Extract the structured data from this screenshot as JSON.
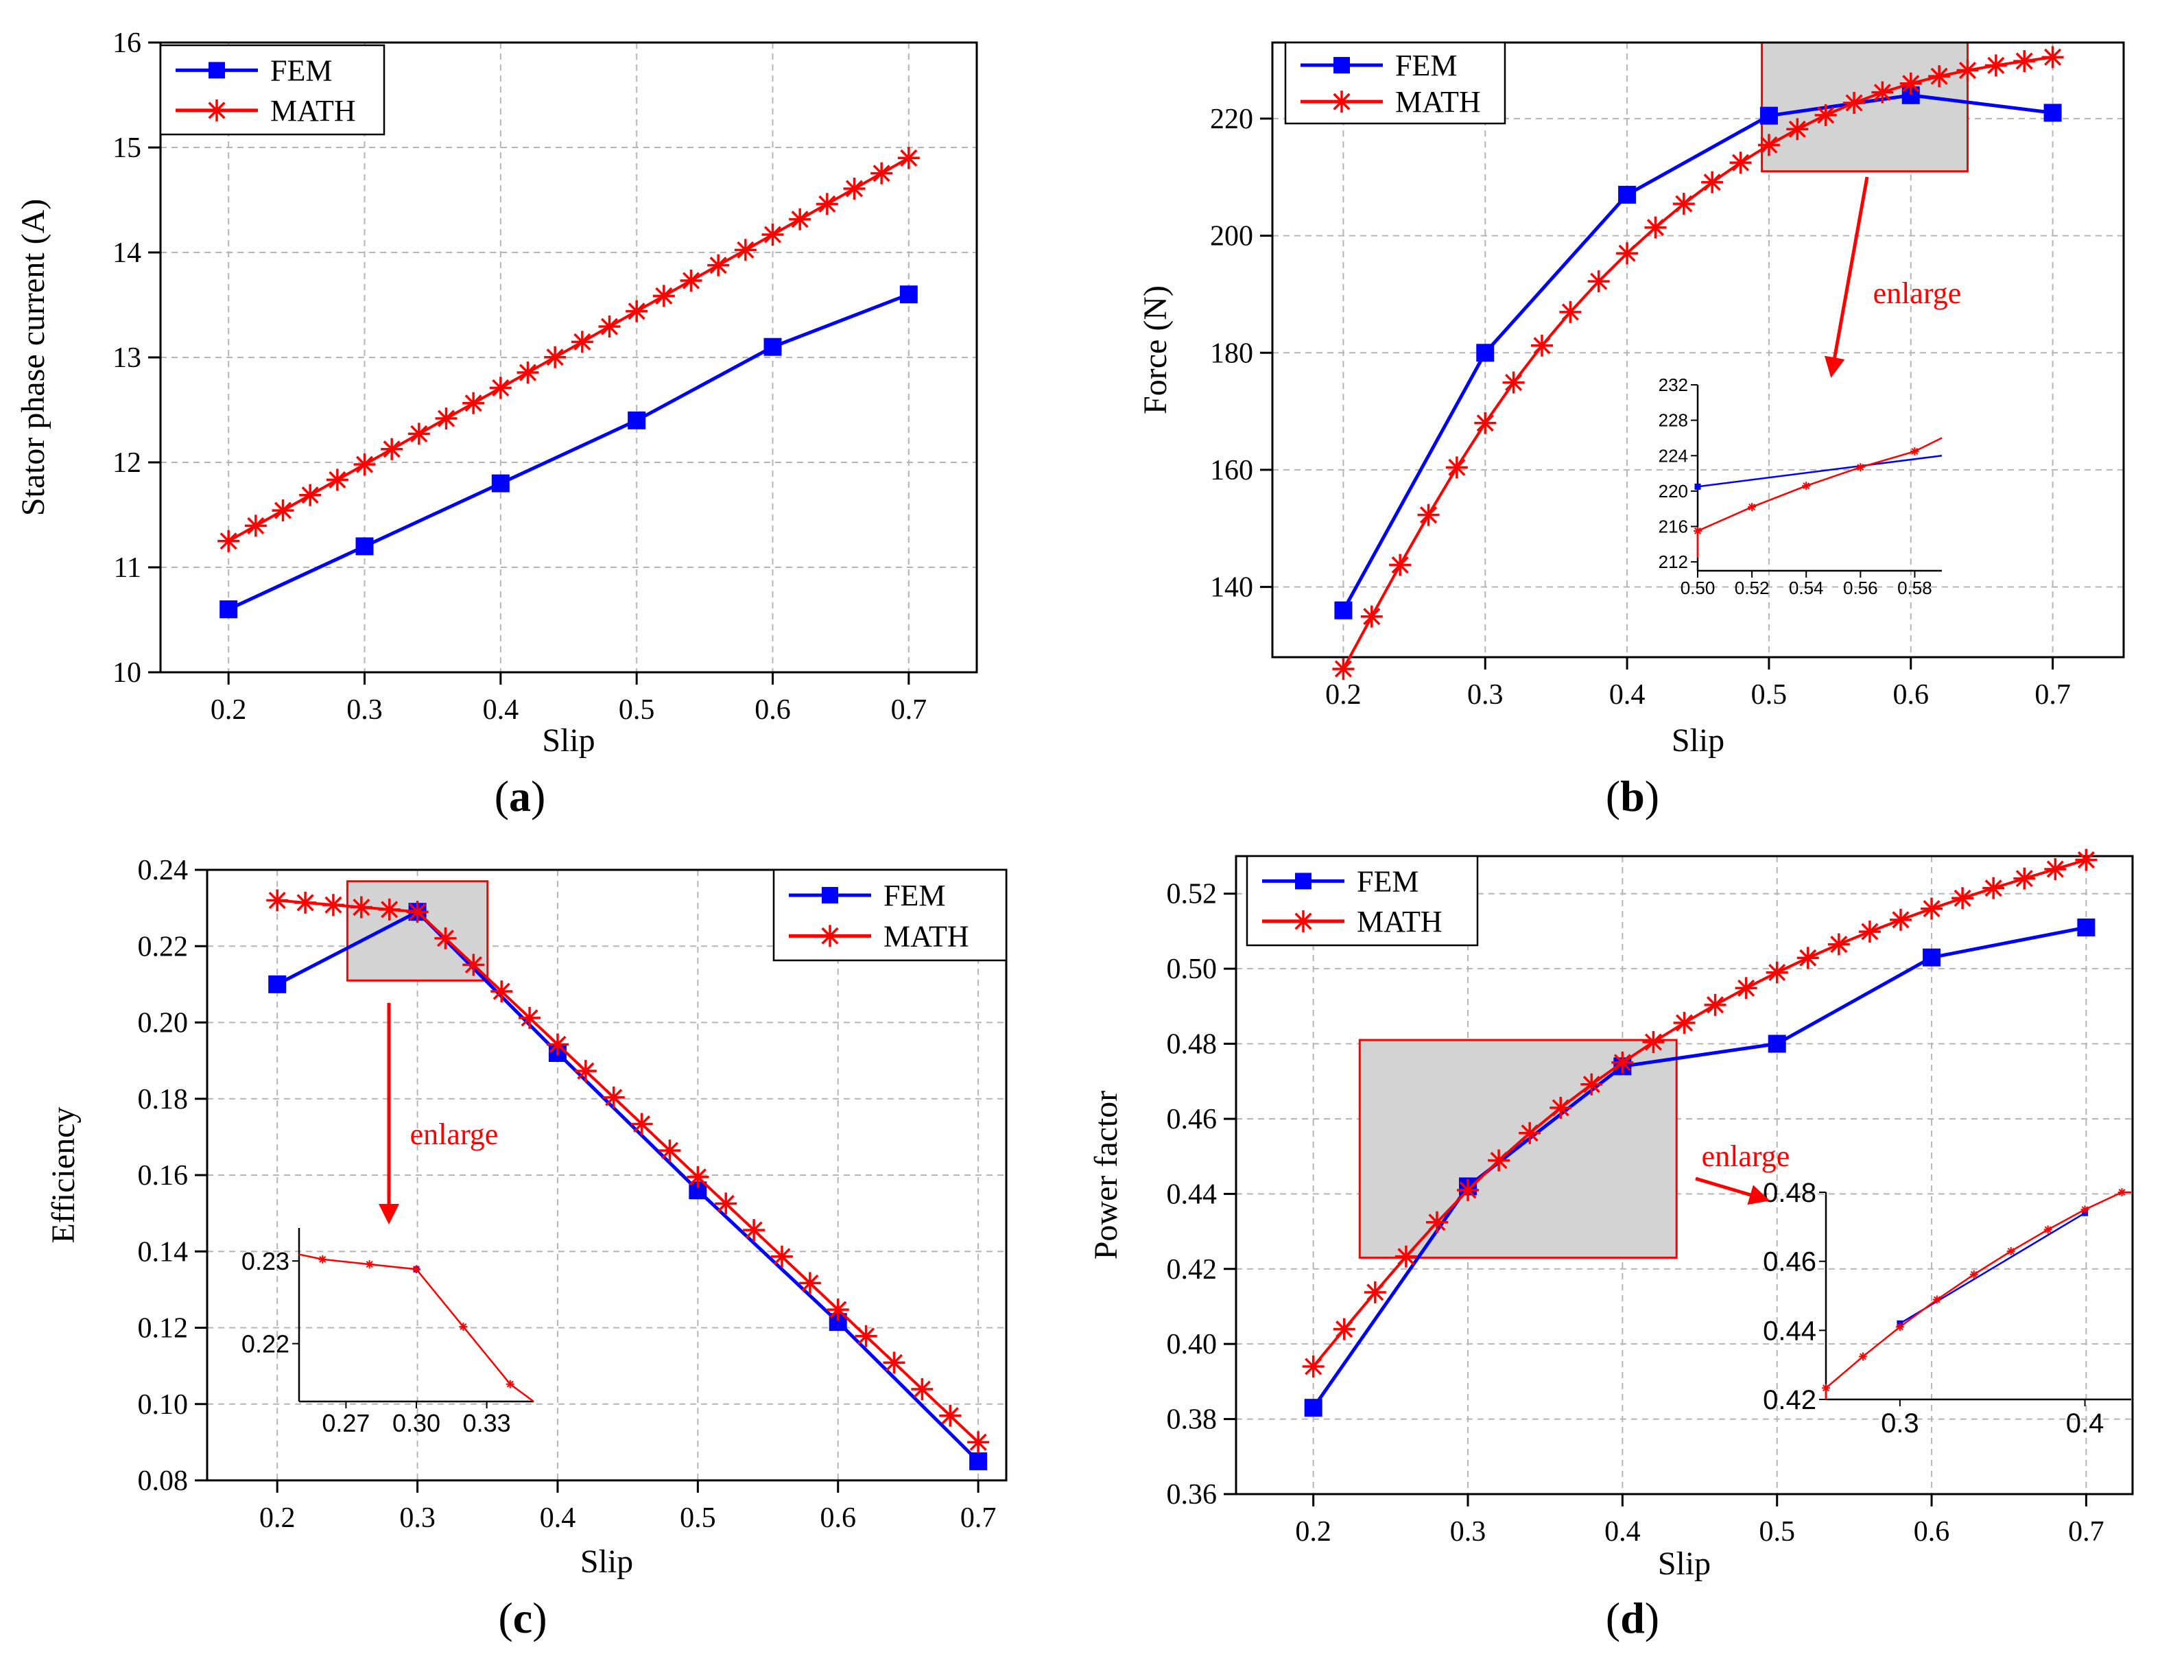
{
  "colors": {
    "fem": "#0000ff",
    "math": "#ff0000",
    "grid": "#b5b5b5",
    "zoom_fill": "#d3d3d3"
  },
  "chart_data": [
    {
      "id": "a",
      "type": "line",
      "caption": "a",
      "xlabel": "Slip",
      "ylabel": "Stator phase current (A)",
      "xlim": [
        0.15,
        0.75
      ],
      "ylim": [
        10,
        16
      ],
      "xticks": [
        0.2,
        0.3,
        0.4,
        0.5,
        0.6,
        0.7
      ],
      "xtick_labels": [
        "0.2",
        "0.3",
        "0.4",
        "0.5",
        "0.6",
        "0.7"
      ],
      "yticks": [
        10,
        11,
        12,
        13,
        14,
        15,
        16
      ],
      "ytick_labels": [
        "10",
        "11",
        "12",
        "13",
        "14",
        "15",
        "16"
      ],
      "legend_position": "top-left",
      "series": [
        {
          "name": "FEM",
          "x": [
            0.2,
            0.3,
            0.4,
            0.5,
            0.6,
            0.7
          ],
          "values": [
            10.6,
            11.2,
            11.8,
            12.4,
            13.1,
            13.6
          ]
        },
        {
          "name": "MATH",
          "x_start": 0.2,
          "x_end": 0.7,
          "x_step": 0.02,
          "y_start": 11.25,
          "y_end": 14.9,
          "curve": "linear"
        }
      ]
    },
    {
      "id": "b",
      "type": "line",
      "caption": "b",
      "xlabel": "Slip",
      "ylabel": "Force (N)",
      "xlim": [
        0.15,
        0.75
      ],
      "ylim": [
        128,
        233
      ],
      "xticks": [
        0.2,
        0.3,
        0.4,
        0.5,
        0.6,
        0.7
      ],
      "xtick_labels": [
        "0.2",
        "0.3",
        "0.4",
        "0.5",
        "0.6",
        "0.7"
      ],
      "yticks": [
        140,
        160,
        180,
        200,
        220
      ],
      "ytick_labels": [
        "140",
        "160",
        "180",
        "200",
        "220"
      ],
      "legend_position": "top-left",
      "series": [
        {
          "name": "FEM",
          "x": [
            0.2,
            0.3,
            0.4,
            0.5,
            0.6,
            0.7
          ],
          "values": [
            136,
            180,
            207,
            220.5,
            224,
            221
          ]
        },
        {
          "name": "MATH",
          "x_start": 0.2,
          "x_end": 0.7,
          "x_step": 0.02,
          "curve": "smooth",
          "x_knots": [
            0.2,
            0.3,
            0.4,
            0.5,
            0.6,
            0.7
          ],
          "y_knots": [
            126,
            168,
            197,
            215.5,
            226,
            230.5
          ]
        }
      ],
      "zoom_region": {
        "x": [
          0.495,
          0.64
        ],
        "y": [
          211,
          233
        ]
      },
      "annotation": "enlarge",
      "inset": {
        "xlim": [
          0.5,
          0.59
        ],
        "ylim": [
          211,
          232
        ],
        "xticks": [
          0.5,
          0.52,
          0.54,
          0.56,
          0.58
        ],
        "xtick_labels": [
          "0.50",
          "0.52",
          "0.54",
          "0.56",
          "0.58"
        ],
        "yticks": [
          212,
          216,
          220,
          224,
          228,
          232
        ],
        "ytick_labels": [
          "212",
          "216",
          "220",
          "224",
          "228",
          "232"
        ]
      }
    },
    {
      "id": "c",
      "type": "line",
      "caption": "c",
      "xlabel": "Slip",
      "ylabel": "Efficiency",
      "xlim": [
        0.15,
        0.72
      ],
      "ylim": [
        0.08,
        0.24
      ],
      "xticks": [
        0.2,
        0.3,
        0.4,
        0.5,
        0.6,
        0.7
      ],
      "xtick_labels": [
        "0.2",
        "0.3",
        "0.4",
        "0.5",
        "0.6",
        "0.7"
      ],
      "yticks": [
        0.08,
        0.1,
        0.12,
        0.14,
        0.16,
        0.18,
        0.2,
        0.22,
        0.24
      ],
      "ytick_labels": [
        "0.08",
        "0.10",
        "0.12",
        "0.14",
        "0.16",
        "0.18",
        "0.20",
        "0.22",
        "0.24"
      ],
      "legend_position": "top-right",
      "series": [
        {
          "name": "FEM",
          "x": [
            0.2,
            0.3,
            0.4,
            0.5,
            0.6,
            0.7
          ],
          "values": [
            0.21,
            0.229,
            0.192,
            0.156,
            0.1215,
            0.085
          ]
        },
        {
          "name": "MATH",
          "x_start": 0.2,
          "x_end": 0.7,
          "x_step": 0.02,
          "curve": "piecewise",
          "x_knots": [
            0.2,
            0.3,
            0.7
          ],
          "y_knots": [
            0.232,
            0.229,
            0.09
          ]
        }
      ],
      "zoom_region": {
        "x": [
          0.25,
          0.35
        ],
        "y": [
          0.211,
          0.237
        ]
      },
      "annotation": "enlarge",
      "inset": {
        "xlim": [
          0.25,
          0.35
        ],
        "ylim": [
          0.213,
          0.234
        ],
        "xticks": [
          0.27,
          0.3,
          0.33
        ],
        "xtick_labels": [
          "0.27",
          "0.30",
          "0.33"
        ],
        "yticks": [
          0.22,
          0.23
        ],
        "ytick_labels": [
          "0.22",
          "0.23"
        ]
      }
    },
    {
      "id": "d",
      "type": "line",
      "caption": "d",
      "xlabel": "Slip",
      "ylabel": "Power factor",
      "xlim": [
        0.15,
        0.73
      ],
      "ylim": [
        0.36,
        0.53
      ],
      "xticks": [
        0.2,
        0.3,
        0.4,
        0.5,
        0.6,
        0.7
      ],
      "xtick_labels": [
        "0.2",
        "0.3",
        "0.4",
        "0.5",
        "0.6",
        "0.7"
      ],
      "yticks": [
        0.36,
        0.38,
        0.4,
        0.42,
        0.44,
        0.46,
        0.48,
        0.5,
        0.52
      ],
      "ytick_labels": [
        "0.36",
        "0.38",
        "0.40",
        "0.42",
        "0.44",
        "0.46",
        "0.48",
        "0.50",
        "0.52"
      ],
      "legend_position": "top-left",
      "series": [
        {
          "name": "FEM",
          "x": [
            0.2,
            0.3,
            0.4,
            0.5,
            0.6,
            0.7
          ],
          "values": [
            0.383,
            0.442,
            0.474,
            0.48,
            0.503,
            0.511
          ]
        },
        {
          "name": "MATH",
          "x_start": 0.2,
          "x_end": 0.7,
          "x_step": 0.02,
          "curve": "smooth",
          "x_knots": [
            0.2,
            0.3,
            0.4,
            0.5,
            0.6,
            0.7
          ],
          "y_knots": [
            0.394,
            0.441,
            0.475,
            0.499,
            0.516,
            0.529
          ]
        }
      ],
      "zoom_region": {
        "x": [
          0.23,
          0.435
        ],
        "y": [
          0.423,
          0.481
        ]
      },
      "annotation": "enlarge",
      "inset": {
        "xlim": [
          0.26,
          0.425
        ],
        "ylim": [
          0.42,
          0.48
        ],
        "xticks": [
          0.3,
          0.4
        ],
        "xtick_labels": [
          "0.3",
          "0.4"
        ],
        "yticks": [
          0.42,
          0.44,
          0.46,
          0.48
        ],
        "ytick_labels": [
          "0.42",
          "0.44",
          "0.46",
          "0.48"
        ]
      }
    }
  ]
}
